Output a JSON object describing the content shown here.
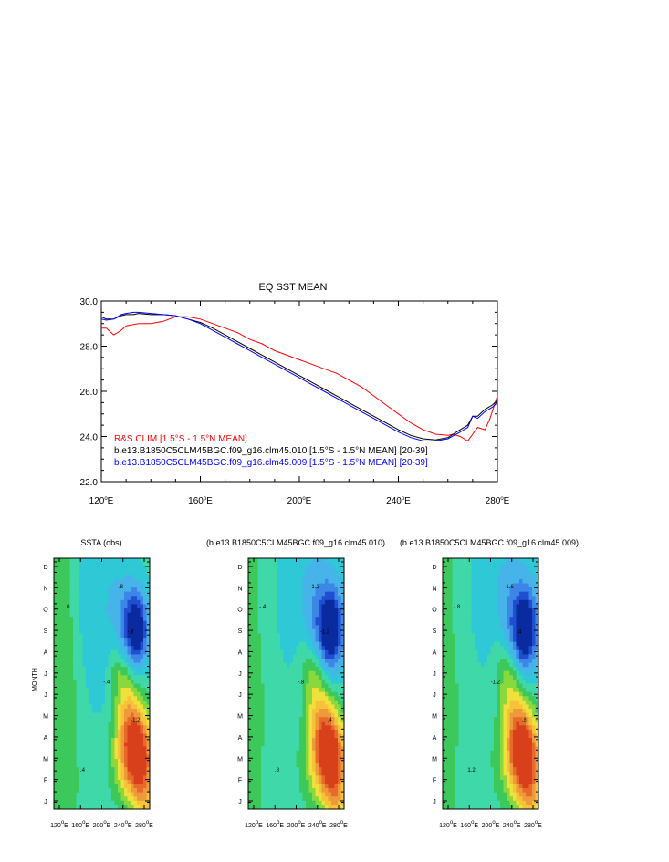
{
  "top_chart": {
    "title": "EQ SST MEAN",
    "y_ticks": [
      "30.0",
      "28.0",
      "26.0",
      "24.0",
      "22.0"
    ],
    "x_ticks": [
      "120°E",
      "160°E",
      "200°E",
      "240°E",
      "280°E"
    ],
    "legend": [
      {
        "label": "R&S CLIM [1.5°S - 1.5°N MEAN]",
        "color": "#ff0000"
      },
      {
        "label": "b.e13.B1850C5CLM45BGC.f09_g16.clm45.010 [1.5°S - 1.5°N MEAN] [20-39]",
        "color": "#000000"
      },
      {
        "label": "b.e13.B1850C5CLM45BGC.f09_g16.clm45.009 [1.5°S - 1.5°N MEAN] [20-39]",
        "color": "#0000ff"
      }
    ]
  },
  "hovmoller": {
    "panel_titles": [
      "SSTA (obs)",
      "(b.e13.B1850C5CLM45BGC.f09_g16.clm45.010)",
      "(b.e13.B1850C5CLM45BGC.f09_g16.clm45.009)"
    ],
    "ylabel": "MONTH",
    "months": [
      "D",
      "N",
      "O",
      "S",
      "A",
      "J",
      "J",
      "M",
      "A",
      "M",
      "F",
      "J"
    ],
    "x_ticks": [
      "120°E",
      "160°E",
      "200°E",
      "240°E",
      "280°E"
    ],
    "contour_labels": [
      "0",
      "-.4",
      "-.8",
      "-1.2",
      ".4",
      ".8",
      "1.2",
      "1.6",
      "2"
    ]
  },
  "chart_data": [
    {
      "type": "line",
      "title": "EQ SST MEAN",
      "xlabel": "",
      "ylabel": "",
      "xlim": [
        120,
        280
      ],
      "ylim": [
        22,
        30
      ],
      "x_tick_values": [
        120,
        160,
        200,
        240,
        280
      ],
      "y_tick_values": [
        30,
        28,
        26,
        24,
        22
      ],
      "legend_position": "bottom-left",
      "series": [
        {
          "name": "R&S CLIM [1.5°S - 1.5°N MEAN]",
          "color": "#ff0000",
          "x": [
            120,
            122,
            125,
            128,
            130,
            135,
            140,
            145,
            150,
            155,
            160,
            165,
            170,
            175,
            180,
            185,
            190,
            195,
            200,
            205,
            210,
            215,
            220,
            225,
            230,
            235,
            240,
            245,
            250,
            255,
            260,
            262,
            265,
            268,
            270,
            272,
            275,
            277,
            280
          ],
          "y": [
            28.8,
            28.8,
            28.5,
            28.7,
            28.9,
            29.0,
            29.0,
            29.1,
            29.3,
            29.3,
            29.2,
            29.0,
            28.8,
            28.6,
            28.3,
            28.1,
            27.8,
            27.6,
            27.4,
            27.2,
            27.0,
            26.8,
            26.5,
            26.2,
            25.8,
            25.4,
            25.0,
            24.6,
            24.3,
            24.1,
            24.05,
            24.1,
            24.0,
            23.8,
            24.1,
            24.4,
            24.3,
            24.8,
            25.8
          ]
        },
        {
          "name": "b.e13.B1850C5CLM45BGC.f09_g16.clm45.010 [1.5°S - 1.5°N MEAN] [20-39]",
          "color": "#000000",
          "x": [
            120,
            122,
            125,
            128,
            130,
            133,
            135,
            140,
            145,
            150,
            155,
            160,
            165,
            170,
            175,
            180,
            185,
            190,
            195,
            200,
            205,
            210,
            215,
            220,
            225,
            230,
            235,
            240,
            245,
            250,
            255,
            260,
            265,
            268,
            270,
            272,
            275,
            278,
            280
          ],
          "y": [
            29.3,
            29.2,
            29.2,
            29.35,
            29.4,
            29.4,
            29.45,
            29.4,
            29.4,
            29.35,
            29.2,
            29.05,
            28.8,
            28.5,
            28.2,
            27.9,
            27.6,
            27.3,
            27.0,
            26.7,
            26.4,
            26.1,
            25.8,
            25.5,
            25.2,
            24.9,
            24.6,
            24.3,
            24.05,
            23.9,
            23.85,
            23.95,
            24.3,
            24.5,
            24.9,
            24.9,
            25.2,
            25.4,
            25.6
          ]
        },
        {
          "name": "b.e13.B1850C5CLM45BGC.f09_g16.clm45.009 [1.5°S - 1.5°N MEAN] [20-39]",
          "color": "#0000ff",
          "x": [
            120,
            122,
            125,
            128,
            130,
            133,
            135,
            140,
            145,
            150,
            155,
            160,
            165,
            170,
            175,
            180,
            185,
            190,
            195,
            200,
            205,
            210,
            215,
            220,
            225,
            230,
            235,
            240,
            245,
            250,
            255,
            260,
            265,
            268,
            270,
            272,
            275,
            278,
            280
          ],
          "y": [
            29.2,
            29.15,
            29.2,
            29.4,
            29.45,
            29.5,
            29.5,
            29.45,
            29.4,
            29.35,
            29.2,
            29.0,
            28.7,
            28.4,
            28.1,
            27.8,
            27.5,
            27.2,
            26.9,
            26.6,
            26.3,
            26.0,
            25.7,
            25.4,
            25.1,
            24.8,
            24.5,
            24.2,
            23.95,
            23.8,
            23.8,
            23.9,
            24.2,
            24.4,
            24.9,
            24.8,
            25.1,
            25.3,
            25.5
          ]
        }
      ]
    }
  ]
}
